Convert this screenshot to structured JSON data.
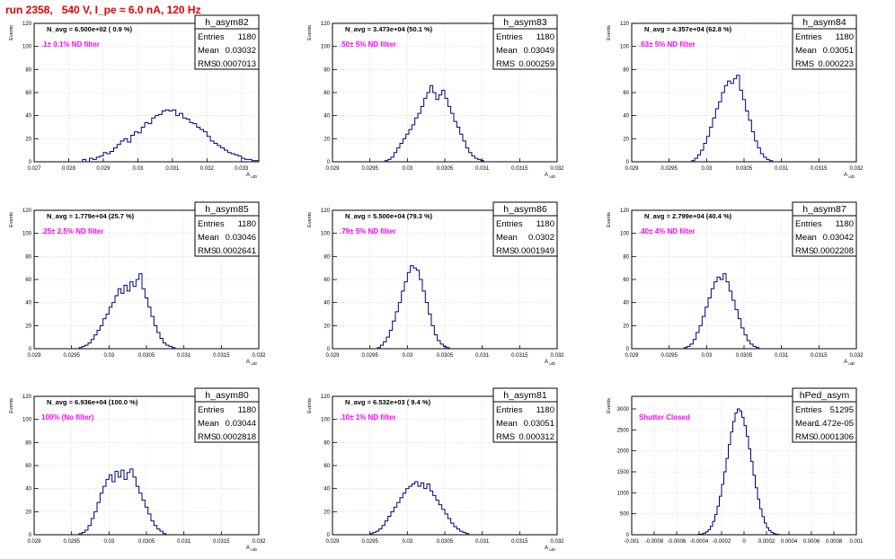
{
  "page_title": "run 2358,   540 V, I_pe ≈ 6.0 nA, 120 Hz",
  "colors": {
    "title": "#e00000",
    "note": "#ff00ff",
    "line": "#000080",
    "grid": "#c8c8c8"
  },
  "stats_labels": {
    "entries": "Entries",
    "mean": "Mean",
    "rms": "RMS"
  },
  "chart_data": [
    {
      "type": "histogram",
      "name": "h_asym82",
      "title": "N_avg = 6.500e+02 ( 0.9 %)",
      "note": ".1± 0.1% ND filter",
      "stats": {
        "entries": "1180",
        "mean": "0.03032",
        "rms": "0.0007013"
      },
      "ylabel": "Events",
      "xlabel": "A_uiD",
      "xlim": [
        0.027,
        0.0335
      ],
      "ylim": [
        0,
        120
      ],
      "xticks": [
        "0.027",
        "0.028",
        "0.029",
        "0.03",
        "0.031",
        "0.032",
        "0.033"
      ],
      "xtick_values": [
        0.027,
        0.028,
        0.029,
        0.03,
        0.031,
        0.032,
        0.033
      ],
      "yticks": [
        0,
        20,
        40,
        60,
        80,
        100,
        120
      ],
      "bins": {
        "start": 0.0284,
        "width": 0.0001,
        "values": [
          2,
          0,
          3,
          2,
          4,
          5,
          8,
          7,
          9,
          12,
          15,
          18,
          20,
          17,
          23,
          26,
          25,
          30,
          34,
          33,
          38,
          40,
          41,
          44,
          45,
          44,
          45,
          40,
          42,
          38,
          37,
          34,
          33,
          30,
          28,
          26,
          22,
          18,
          16,
          14,
          12,
          10,
          8,
          7,
          6,
          5,
          3,
          2,
          2,
          1,
          1
        ]
      }
    },
    {
      "type": "histogram",
      "name": "h_asym83",
      "title": "N_avg = 3.473e+04 (50.1 %)",
      "note": ".50± 5% ND filter",
      "stats": {
        "entries": "1180",
        "mean": "0.03049",
        "rms": "0.000259"
      },
      "ylabel": "Events",
      "xlabel": "A_uiD",
      "xlim": [
        0.029,
        0.032
      ],
      "ylim": [
        0,
        120
      ],
      "xticks": [
        "0.029",
        "0.0295",
        "0.03",
        "0.0305",
        "0.031",
        "0.0315",
        "0.032"
      ],
      "xtick_values": [
        0.029,
        0.0295,
        0.03,
        0.0305,
        0.031,
        0.0315,
        0.032
      ],
      "yticks": [
        0,
        20,
        40,
        60,
        80,
        100,
        120
      ],
      "bins": {
        "start": 0.0297,
        "width": 4e-05,
        "values": [
          1,
          2,
          4,
          8,
          12,
          16,
          20,
          24,
          28,
          32,
          38,
          42,
          48,
          55,
          60,
          66,
          60,
          54,
          58,
          62,
          55,
          48,
          42,
          35,
          30,
          24,
          18,
          12,
          8,
          5,
          3,
          2,
          1
        ]
      }
    },
    {
      "type": "histogram",
      "name": "h_asym84",
      "title": "N_avg = 4.357e+04 (62.8 %)",
      "note": ".63± 5% ND filter",
      "stats": {
        "entries": "1180",
        "mean": "0.03051",
        "rms": "0.000223"
      },
      "ylabel": "Events",
      "xlabel": "A_uiD",
      "xlim": [
        0.029,
        0.032
      ],
      "ylim": [
        0,
        120
      ],
      "xticks": [
        "0.029",
        "0.0295",
        "0.03",
        "0.0305",
        "0.031",
        "0.0315",
        "0.032"
      ],
      "xtick_values": [
        0.029,
        0.0295,
        0.03,
        0.0305,
        0.031,
        0.0315,
        0.032
      ],
      "yticks": [
        0,
        20,
        40,
        60,
        80,
        100,
        120
      ],
      "bins": {
        "start": 0.0298,
        "width": 4e-05,
        "values": [
          1,
          3,
          6,
          10,
          16,
          22,
          30,
          38,
          46,
          52,
          60,
          66,
          70,
          68,
          72,
          75,
          62,
          54,
          44,
          36,
          26,
          18,
          12,
          7,
          4,
          2,
          1
        ]
      }
    },
    {
      "type": "histogram",
      "name": "h_asym85",
      "title": "N_avg = 1.779e+04 (25.7 %)",
      "note": ".25± 2.5% ND filter",
      "stats": {
        "entries": "1180",
        "mean": "0.03046",
        "rms": "0.0002641"
      },
      "ylabel": "Events",
      "xlabel": "A_uiD",
      "xlim": [
        0.029,
        0.032
      ],
      "ylim": [
        0,
        120
      ],
      "xticks": [
        "0.029",
        "0.0295",
        "0.03",
        "0.0305",
        "0.031",
        "0.0315",
        "0.032"
      ],
      "xtick_values": [
        0.029,
        0.0295,
        0.03,
        0.0305,
        0.031,
        0.0315,
        0.032
      ],
      "yticks": [
        0,
        20,
        40,
        60,
        80,
        100,
        120
      ],
      "bins": {
        "start": 0.0296,
        "width": 4e-05,
        "values": [
          1,
          2,
          3,
          5,
          8,
          12,
          16,
          20,
          26,
          30,
          36,
          40,
          46,
          52,
          48,
          55,
          50,
          58,
          54,
          60,
          65,
          52,
          44,
          36,
          28,
          20,
          14,
          9,
          5,
          3,
          2,
          1
        ]
      }
    },
    {
      "type": "histogram",
      "name": "h_asym86",
      "title": "N_avg = 5.500e+04 (79.3 %)",
      "note": ".79± 5% ND filter",
      "stats": {
        "entries": "1180",
        "mean": "0.0302",
        "rms": "0.0001949"
      },
      "ylabel": "Events",
      "xlabel": "A_uiD",
      "xlim": [
        0.029,
        0.032
      ],
      "ylim": [
        0,
        120
      ],
      "xticks": [
        "0.029",
        "0.0295",
        "0.03",
        "0.0305",
        "0.031",
        "0.0315",
        "0.032"
      ],
      "xtick_values": [
        0.029,
        0.0295,
        0.03,
        0.0305,
        0.031,
        0.0315,
        0.032
      ],
      "yticks": [
        0,
        20,
        40,
        60,
        80,
        100,
        120
      ],
      "bins": {
        "start": 0.0296,
        "width": 4e-05,
        "values": [
          1,
          3,
          6,
          10,
          16,
          24,
          32,
          40,
          50,
          58,
          66,
          72,
          70,
          68,
          60,
          50,
          40,
          30,
          20,
          12,
          7,
          4,
          2,
          1
        ]
      }
    },
    {
      "type": "histogram",
      "name": "h_asym87",
      "title": "N_avg = 2.799e+04 (40.4 %)",
      "note": ".40± 4% ND filter",
      "stats": {
        "entries": "1180",
        "mean": "0.03042",
        "rms": "0.0002208"
      },
      "ylabel": "Events",
      "xlabel": "A_uiD",
      "xlim": [
        0.029,
        0.032
      ],
      "ylim": [
        0,
        120
      ],
      "xticks": [
        "0.029",
        "0.0295",
        "0.03",
        "0.0305",
        "0.031",
        "0.0315",
        "0.032"
      ],
      "xtick_values": [
        0.029,
        0.0295,
        0.03,
        0.0305,
        0.031,
        0.0315,
        0.032
      ],
      "yticks": [
        0,
        20,
        40,
        60,
        80,
        100,
        120
      ],
      "bins": {
        "start": 0.0297,
        "width": 4e-05,
        "values": [
          1,
          2,
          4,
          8,
          14,
          20,
          28,
          36,
          44,
          52,
          58,
          62,
          60,
          65,
          58,
          50,
          42,
          34,
          26,
          18,
          12,
          7,
          4,
          2,
          1
        ]
      }
    },
    {
      "type": "histogram",
      "name": "h_asym80",
      "title": "N_avg = 6.936e+04 (100.0 %)",
      "note": "100% (No filter)",
      "stats": {
        "entries": "1180",
        "mean": "0.03044",
        "rms": "0.0002818"
      },
      "ylabel": "Events",
      "xlabel": "A_uiD",
      "xlim": [
        0.029,
        0.032
      ],
      "ylim": [
        0,
        120
      ],
      "xticks": [
        "0.029",
        "0.0295",
        "0.03",
        "0.0305",
        "0.031",
        "0.0315",
        "0.032"
      ],
      "xtick_values": [
        0.029,
        0.0295,
        0.03,
        0.0305,
        0.031,
        0.0315,
        0.032
      ],
      "yticks": [
        0,
        20,
        40,
        60,
        80,
        100,
        120
      ],
      "bins": {
        "start": 0.0296,
        "width": 4e-05,
        "values": [
          1,
          2,
          4,
          8,
          14,
          20,
          28,
          36,
          42,
          48,
          52,
          46,
          55,
          50,
          56,
          48,
          54,
          57,
          50,
          42,
          36,
          30,
          24,
          18,
          12,
          8,
          5,
          3,
          1
        ]
      }
    },
    {
      "type": "histogram",
      "name": "h_asym81",
      "title": "N_avg = 6.532e+03 ( 9.4 %)",
      "note": ".10± 1% ND filter",
      "stats": {
        "entries": "1180",
        "mean": "0.03051",
        "rms": "0.000312"
      },
      "ylabel": "Events",
      "xlabel": "A_uiD",
      "xlim": [
        0.029,
        0.032
      ],
      "ylim": [
        0,
        120
      ],
      "xticks": [
        "0.029",
        "0.0295",
        "0.03",
        "0.0305",
        "0.031",
        "0.0315",
        "0.032"
      ],
      "xtick_values": [
        0.029,
        0.0295,
        0.03,
        0.0305,
        0.031,
        0.0315,
        0.032
      ],
      "yticks": [
        0,
        20,
        40,
        60,
        80,
        100,
        120
      ],
      "bins": {
        "start": 0.0295,
        "width": 4e-05,
        "values": [
          1,
          2,
          3,
          5,
          8,
          12,
          16,
          20,
          24,
          28,
          32,
          36,
          40,
          42,
          44,
          46,
          42,
          45,
          40,
          44,
          38,
          34,
          30,
          26,
          22,
          18,
          14,
          10,
          7,
          5,
          3,
          2,
          1
        ]
      }
    },
    {
      "type": "histogram",
      "name": "hPed_asym",
      "title": "",
      "note": "Shutter Closed",
      "stats": {
        "entries": "51295",
        "mean": "1.472e-05",
        "rms": "0.0001306"
      },
      "ylabel": "Events",
      "xlabel": "",
      "xlim": [
        -0.001,
        0.001
      ],
      "ylim": [
        0,
        3300
      ],
      "xticks": [
        "-0.001",
        "-0.0008",
        "-0.0006",
        "-0.0004",
        "-0.0002",
        "0",
        "0.0002",
        "0.0004",
        "0.0006",
        "0.0008",
        "0.001"
      ],
      "xtick_values": [
        -0.001,
        -0.0008,
        -0.0006,
        -0.0004,
        -0.0002,
        0,
        0.0002,
        0.0004,
        0.0006,
        0.0008,
        0.001
      ],
      "yticks": [
        0,
        500,
        1000,
        1500,
        2000,
        2500,
        3000
      ],
      "bins": {
        "start": -0.00042,
        "width": 2e-05,
        "values": [
          5,
          10,
          20,
          40,
          70,
          120,
          200,
          320,
          480,
          680,
          920,
          1200,
          1500,
          1820,
          2150,
          2450,
          2700,
          2900,
          3000,
          2950,
          2800,
          2600,
          2350,
          2050,
          1750,
          1420,
          1120,
          850,
          620,
          430,
          280,
          170,
          100,
          55,
          28,
          14,
          6
        ]
      }
    }
  ]
}
